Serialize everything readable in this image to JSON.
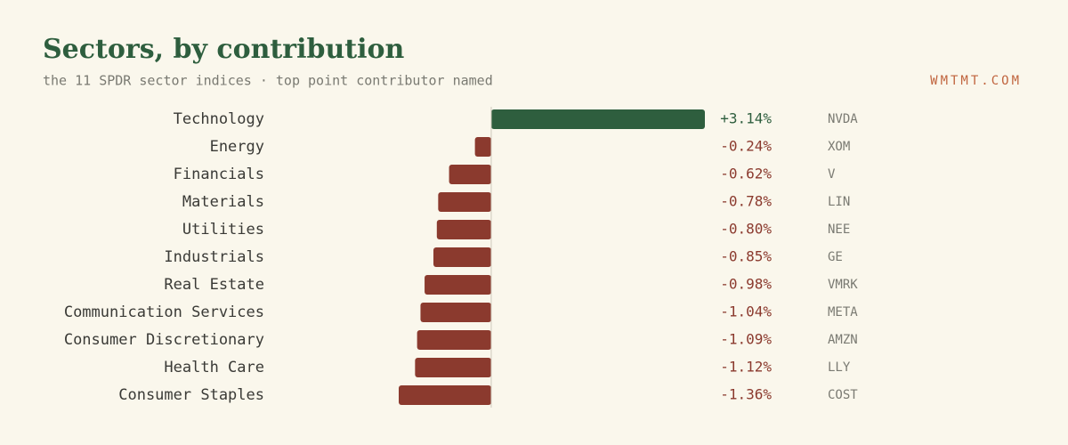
{
  "chart_data": {
    "type": "bar",
    "orientation": "horizontal",
    "title": "Sectors, by contribution",
    "subtitle": "the 11 SPDR sector indices · top point contributor named",
    "source": "WMTMT.COM",
    "categories": [
      "Technology",
      "Energy",
      "Financials",
      "Materials",
      "Utilities",
      "Industrials",
      "Real Estate",
      "Communication Services",
      "Consumer Discretionary",
      "Health Care",
      "Consumer Staples"
    ],
    "values": [
      3.14,
      -0.24,
      -0.62,
      -0.78,
      -0.8,
      -0.85,
      -0.98,
      -1.04,
      -1.09,
      -1.12,
      -1.36
    ],
    "value_labels": [
      "+3.14%",
      "-0.24%",
      "-0.62%",
      "-0.78%",
      "-0.80%",
      "-0.85%",
      "-0.98%",
      "-1.04%",
      "-1.09%",
      "-1.12%",
      "-1.36%"
    ],
    "tickers": [
      "NVDA",
      "XOM",
      "V",
      "LIN",
      "NEE",
      "GE",
      "VMRK",
      "META",
      "AMZN",
      "LLY",
      "COST"
    ],
    "xlim": [
      -1.36,
      3.14
    ],
    "positive_color": "#2e5e3e",
    "negative_color": "#8b3a2e"
  }
}
